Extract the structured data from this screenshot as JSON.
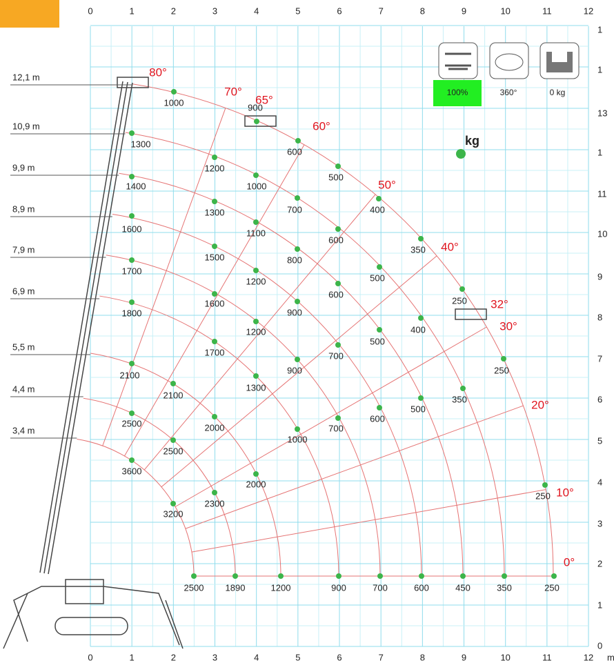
{
  "axis": {
    "top": [
      "0",
      "1",
      "2",
      "3",
      "4",
      "5",
      "6",
      "7",
      "8",
      "9",
      "10",
      "11",
      "12"
    ],
    "bottom": [
      "0",
      "1",
      "2",
      "3",
      "4",
      "5",
      "6",
      "7",
      "8",
      "9",
      "10",
      "11",
      "12"
    ],
    "bottom_unit": "m",
    "right": [
      "1",
      "1",
      "13",
      "1",
      "11",
      "10",
      "9",
      "8",
      "7",
      "6",
      "5",
      "4",
      "3",
      "2",
      "1",
      "0"
    ]
  },
  "boom_lengths": [
    "12,1 m",
    "10,9 m",
    "9,9 m",
    "8,9 m",
    "7,9 m",
    "6,9 m",
    "5,5 m",
    "4,4 m",
    "3,4 m"
  ],
  "angles": [
    "80°",
    "70°",
    "65°",
    "60°",
    "50°",
    "40°",
    "32°",
    "30°",
    "20°",
    "10°",
    "0°"
  ],
  "loads": [
    [
      "1000",
      "900",
      "600",
      "500",
      "400",
      "350",
      "250",
      "250",
      "250",
      "250"
    ],
    [
      "1300",
      "1200",
      "1000",
      "700",
      "600",
      "500",
      "400",
      "350",
      "350"
    ],
    [
      "1400",
      "1300",
      "1100",
      "800",
      "600",
      "500",
      "500",
      "450"
    ],
    [
      "1600",
      "1500",
      "1200",
      "900",
      "700",
      "600",
      "600"
    ],
    [
      "1700",
      "1600",
      "1200",
      "900",
      "700",
      "700"
    ],
    [
      "1800",
      "1700",
      "1300",
      "1000",
      "900"
    ],
    [
      "2100",
      "2100",
      "2000",
      "2000",
      "1200"
    ],
    [
      "2500",
      "2500",
      "2300",
      "1890"
    ],
    [
      "3600",
      "3200",
      "2500"
    ]
  ],
  "legend": {
    "labels": [
      "100%",
      "360°",
      "0 kg"
    ],
    "unit": "kg"
  }
}
